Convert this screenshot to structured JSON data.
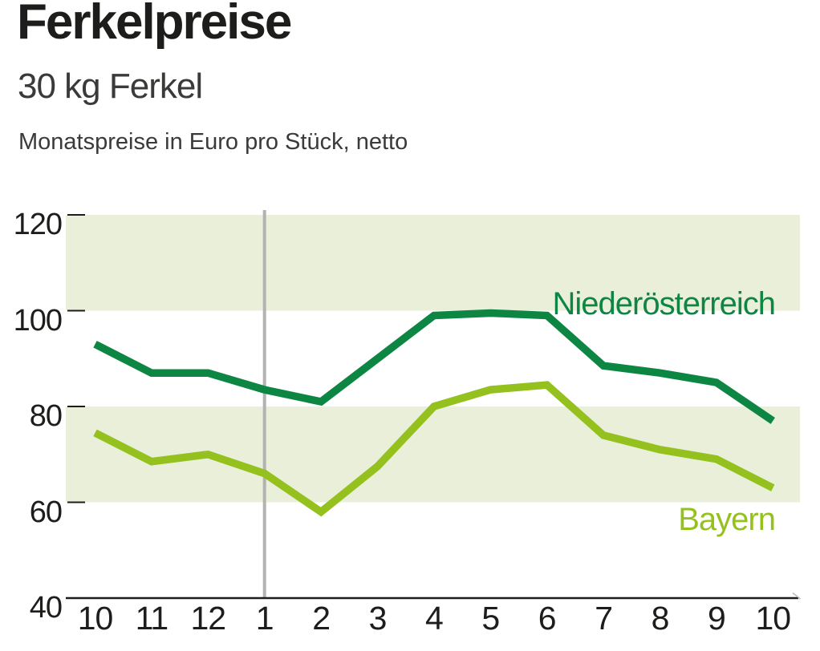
{
  "header": {
    "title": "Ferkelpreise",
    "subtitle": "30 kg Ferkel",
    "note": "Monatspreise in Euro pro Stück, netto"
  },
  "chart_data": {
    "type": "line",
    "title": "Ferkelpreise",
    "subtitle": "30 kg Ferkel",
    "unit_note": "Monatspreise in Euro pro Stück, netto",
    "categories": [
      "10",
      "11",
      "12",
      "1",
      "2",
      "3",
      "4",
      "5",
      "6",
      "7",
      "8",
      "9",
      "10"
    ],
    "x_label_values": [
      "10",
      "11",
      "12",
      "1",
      "2",
      "3",
      "4",
      "5",
      "6",
      "7",
      "8",
      "9",
      "10"
    ],
    "series": [
      {
        "name": "Niederösterreich",
        "color": "#0e8643",
        "values": [
          93,
          87,
          87,
          83.5,
          81,
          90,
          99,
          99.5,
          99,
          88.5,
          87,
          85,
          77
        ]
      },
      {
        "name": "Bayern",
        "color": "#95c11f",
        "values": [
          74.5,
          68.5,
          70,
          66,
          58,
          67.5,
          80,
          83.5,
          84.5,
          74,
          71,
          69,
          63
        ]
      }
    ],
    "xlabel": "",
    "ylabel": "",
    "ylim": [
      40,
      120
    ],
    "yticks": [
      120,
      100,
      80,
      60,
      40
    ],
    "ytick_labels": [
      "120",
      "100",
      "80",
      "60",
      "40"
    ],
    "bands": [
      [
        100,
        120
      ],
      [
        60,
        80
      ]
    ],
    "band_color": "#e9efd9",
    "year_divider_at_category_index": 3,
    "divider_color": "#b3b3b3",
    "axis_color": "#1d1d1b",
    "grid": "off",
    "legend_position": "inline-right"
  }
}
